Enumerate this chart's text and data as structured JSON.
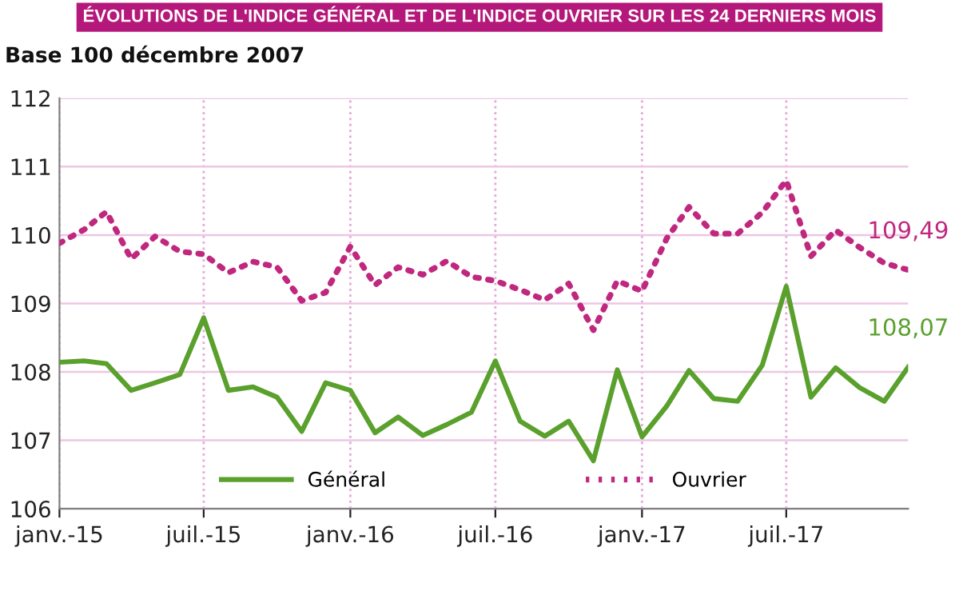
{
  "chart_data": {
    "type": "line",
    "title": "ÉVOLUTIONS DE L'INDICE GÉNÉRAL ET DE L'INDICE OUVRIER SUR LES 24 DERNIERS MOIS",
    "subtitle": "Base 100 décembre 2007",
    "x": [
      "2015-01",
      "2015-02",
      "2015-03",
      "2015-04",
      "2015-05",
      "2015-06",
      "2015-07",
      "2015-08",
      "2015-09",
      "2015-10",
      "2015-11",
      "2015-12",
      "2016-01",
      "2016-02",
      "2016-03",
      "2016-04",
      "2016-05",
      "2016-06",
      "2016-07",
      "2016-08",
      "2016-09",
      "2016-10",
      "2016-11",
      "2016-12",
      "2017-01",
      "2017-02",
      "2017-03",
      "2017-04",
      "2017-05",
      "2017-06",
      "2017-07",
      "2017-08",
      "2017-09",
      "2017-10",
      "2017-11",
      "2017-12"
    ],
    "series": [
      {
        "name": "Général",
        "color": "#5aa02c",
        "line_style": "solid",
        "values": [
          108.14,
          108.16,
          108.12,
          107.73,
          107.84,
          107.96,
          108.79,
          107.73,
          107.78,
          107.63,
          107.13,
          107.84,
          107.73,
          107.11,
          107.34,
          107.07,
          107.23,
          107.41,
          108.16,
          107.28,
          107.06,
          107.28,
          106.7,
          108.03,
          107.05,
          107.5,
          108.02,
          107.61,
          107.57,
          108.1,
          109.25,
          107.63,
          108.06,
          107.77,
          107.57,
          108.07
        ],
        "value_labels": [
          null,
          null,
          null,
          null,
          null,
          null,
          null,
          null,
          null,
          null,
          null,
          null,
          null,
          null,
          null,
          null,
          null,
          null,
          null,
          null,
          null,
          null,
          null,
          null,
          null,
          null,
          null,
          null,
          null,
          null,
          null,
          null,
          null,
          null,
          null,
          "108,07"
        ]
      },
      {
        "name": "Ouvrier",
        "color": "#c0287f",
        "line_style": "dotted",
        "values": [
          109.88,
          110.08,
          110.34,
          109.65,
          109.98,
          109.76,
          109.72,
          109.45,
          109.61,
          109.53,
          109.04,
          109.16,
          109.83,
          109.27,
          109.53,
          109.42,
          109.62,
          109.39,
          109.33,
          109.2,
          109.05,
          109.29,
          108.61,
          109.33,
          109.18,
          109.95,
          110.41,
          110.02,
          110.02,
          110.33,
          110.8,
          109.69,
          110.07,
          109.82,
          109.59,
          109.49
        ],
        "value_labels": [
          null,
          null,
          null,
          null,
          null,
          null,
          null,
          null,
          null,
          null,
          null,
          null,
          null,
          null,
          null,
          null,
          null,
          null,
          null,
          null,
          null,
          null,
          null,
          null,
          null,
          null,
          null,
          null,
          null,
          null,
          null,
          null,
          null,
          null,
          null,
          "109,49"
        ]
      }
    ],
    "xlim": [
      "2015-01",
      "2017-12"
    ],
    "xticks": [
      {
        "value": "2015-01",
        "label": "janv.-15"
      },
      {
        "value": "2015-07",
        "label": "juil.-15"
      },
      {
        "value": "2016-01",
        "label": "janv.-16"
      },
      {
        "value": "2016-07",
        "label": "juil.-16"
      },
      {
        "value": "2017-01",
        "label": "janv.-17"
      },
      {
        "value": "2017-07",
        "label": "juil.-17"
      }
    ],
    "ylim": [
      106,
      112
    ],
    "yticks": [
      106,
      107,
      108,
      109,
      110,
      111,
      112
    ],
    "grid": true,
    "legend": "bottom",
    "marker": "none"
  }
}
